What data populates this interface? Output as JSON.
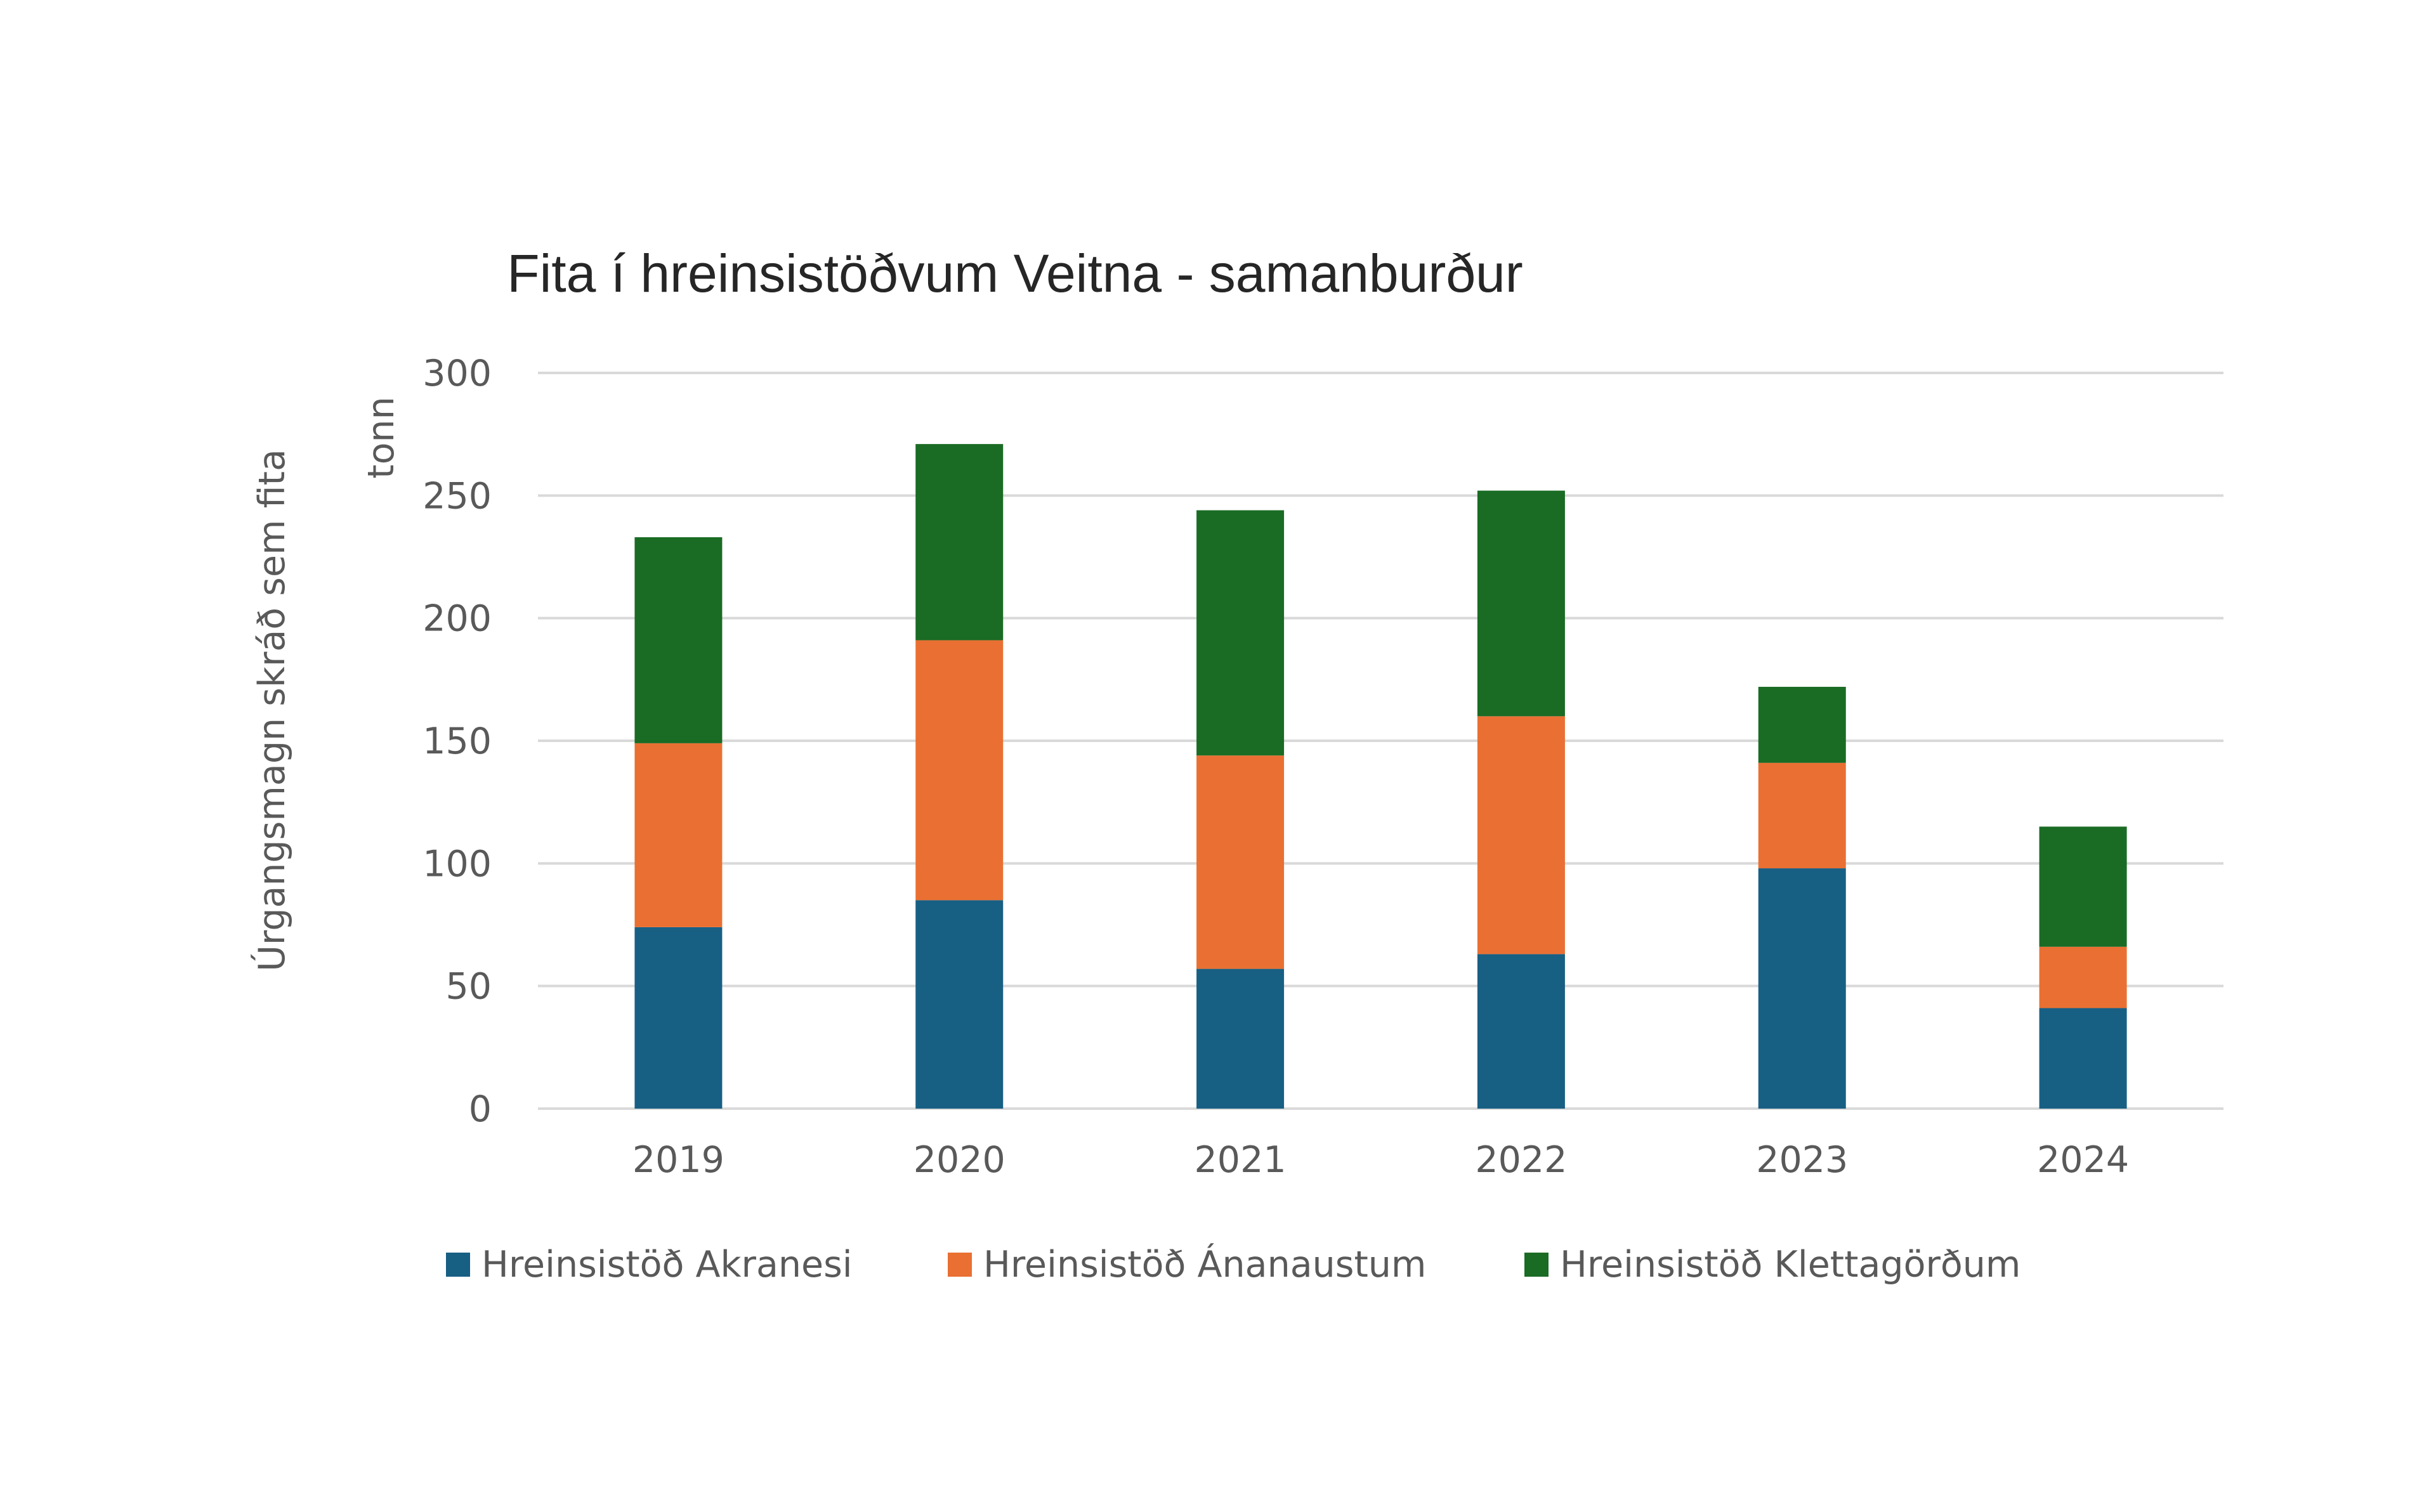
{
  "chart_data": {
    "type": "bar",
    "stacked": true,
    "title": "Fita í hreinsistöðvum Veitna - samanburður",
    "ylabel": "Úrgangsmagn skráð sem fita",
    "yunit": "tonn",
    "xlabel": "",
    "ylim": [
      0,
      300
    ],
    "yticks": [
      0,
      50,
      100,
      150,
      200,
      250,
      300
    ],
    "categories": [
      "2019",
      "2020",
      "2021",
      "2022",
      "2023",
      "2024"
    ],
    "series": [
      {
        "name": "Hreinsistöð Akranesi",
        "color": "#185f84",
        "values": [
          74,
          85,
          57,
          63,
          98,
          41
        ]
      },
      {
        "name": "Hreinsistöð Ánanaustum",
        "color": "#e97032",
        "values": [
          75,
          106,
          87,
          97,
          43,
          25
        ]
      },
      {
        "name": "Hreinsistöð Klettagörðum",
        "color": "#1a6b24",
        "values": [
          84,
          80,
          100,
          92,
          31,
          49
        ]
      }
    ],
    "grid": true,
    "legend": "bottom"
  }
}
